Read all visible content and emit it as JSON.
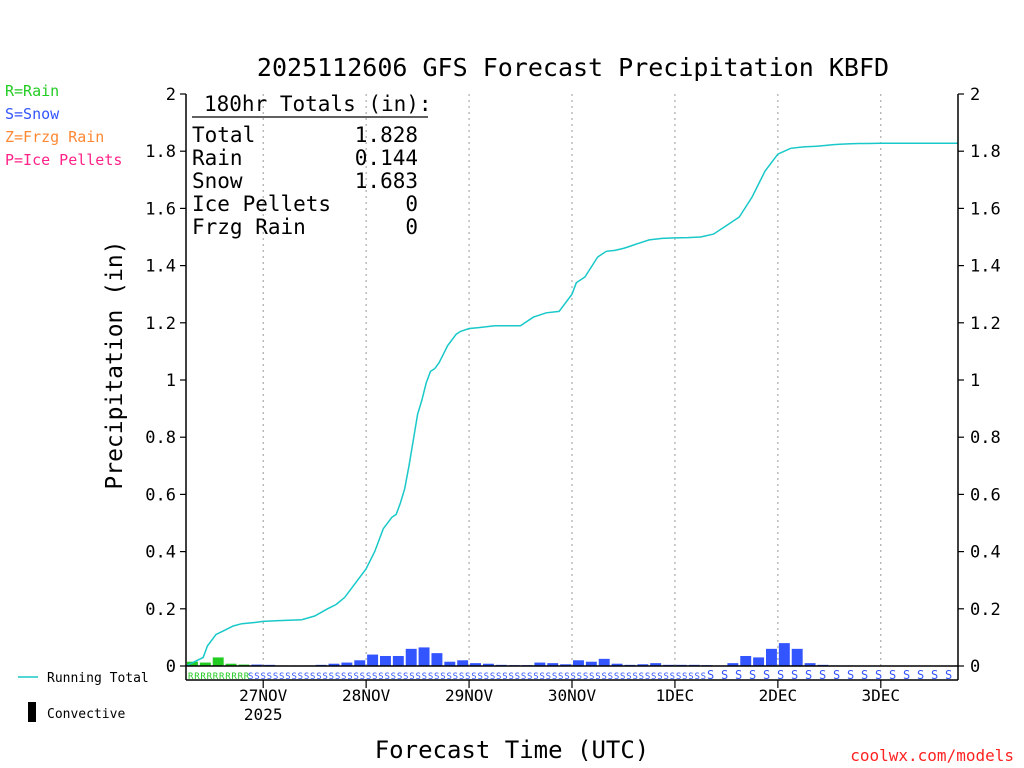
{
  "chart_data": {
    "type": "bar",
    "title": "2025112606 GFS Forecast Precipitation KBFD",
    "xlabel": "Forecast Time (UTC)",
    "ylabel": "Precipitation (in)",
    "ylim": [
      0,
      2
    ],
    "xlim_hours": [
      0,
      180
    ],
    "y_ticks": [
      {
        "v": 0,
        "label": "0"
      },
      {
        "v": 0.2,
        "label": "0.2"
      },
      {
        "v": 0.4,
        "label": "0.4"
      },
      {
        "v": 0.6,
        "label": "0.6"
      },
      {
        "v": 0.8,
        "label": "0.8"
      },
      {
        "v": 1.0,
        "label": "1"
      },
      {
        "v": 1.2,
        "label": "1.2"
      },
      {
        "v": 1.4,
        "label": "1.4"
      },
      {
        "v": 1.6,
        "label": "1.6"
      },
      {
        "v": 1.8,
        "label": "1.8"
      },
      {
        "v": 2.0,
        "label": "2"
      }
    ],
    "x_ticks": [
      {
        "h": 18,
        "label": "27NOV",
        "sublabel": "2025"
      },
      {
        "h": 42,
        "label": "28NOV",
        "sublabel": ""
      },
      {
        "h": 66,
        "label": "29NOV",
        "sublabel": ""
      },
      {
        "h": 90,
        "label": "30NOV",
        "sublabel": ""
      },
      {
        "h": 114,
        "label": "1DEC",
        "sublabel": ""
      },
      {
        "h": 138,
        "label": "2DEC",
        "sublabel": ""
      },
      {
        "h": 162,
        "label": "3DEC",
        "sublabel": ""
      }
    ],
    "precip_type_legend": [
      {
        "text": "R=Rain",
        "color": "#22cc22"
      },
      {
        "text": "S=Snow",
        "color": "#3355ff"
      },
      {
        "text": "Z=Frzg Rain",
        "color": "#ff8833"
      },
      {
        "text": "P=Ice Pellets",
        "color": "#ff2288"
      }
    ],
    "series_legend": [
      {
        "name": "Running Total",
        "kind": "line",
        "color": "#19c8c8"
      },
      {
        "name": "Convective",
        "kind": "bar",
        "color": "#000000"
      }
    ],
    "totals_box": {
      "header": "180hr Totals (in):",
      "rows": [
        {
          "label": "Total",
          "value": "1.828"
        },
        {
          "label": "Rain",
          "value": "0.144"
        },
        {
          "label": "Snow",
          "value": "1.683"
        },
        {
          "label": "Ice Pellets",
          "value": "0"
        },
        {
          "label": "Frzg Rain",
          "value": "0"
        }
      ]
    },
    "running_total": {
      "name": "Running Total",
      "color": "#19c8c8",
      "x_hours": [
        0,
        2,
        4,
        5,
        7,
        9,
        11,
        13,
        16,
        18,
        21,
        24,
        27,
        30,
        33,
        35,
        37,
        39,
        40,
        42,
        44,
        46,
        48,
        49,
        50,
        51,
        52,
        53,
        54,
        55,
        56,
        57,
        58,
        59,
        60,
        61,
        62,
        63,
        64,
        66,
        68,
        70,
        72,
        75,
        78,
        81,
        84,
        87,
        90,
        91,
        93,
        96,
        98,
        100,
        102,
        103,
        105,
        106,
        108,
        111,
        114,
        117,
        120,
        123,
        126,
        129,
        132,
        135,
        138,
        141,
        144,
        147,
        149,
        151,
        153,
        155,
        157,
        159,
        162,
        165,
        168,
        171,
        174,
        177,
        180
      ],
      "values": [
        0.0,
        0.015,
        0.03,
        0.07,
        0.11,
        0.125,
        0.14,
        0.148,
        0.152,
        0.156,
        0.158,
        0.16,
        0.162,
        0.175,
        0.2,
        0.215,
        0.24,
        0.28,
        0.3,
        0.34,
        0.4,
        0.48,
        0.52,
        0.53,
        0.57,
        0.62,
        0.7,
        0.79,
        0.88,
        0.93,
        0.99,
        1.03,
        1.04,
        1.06,
        1.09,
        1.12,
        1.14,
        1.16,
        1.17,
        1.18,
        1.183,
        1.186,
        1.19,
        1.19,
        1.19,
        1.22,
        1.235,
        1.24,
        1.3,
        1.34,
        1.36,
        1.43,
        1.45,
        1.453,
        1.46,
        1.465,
        1.475,
        1.48,
        1.49,
        1.495,
        1.497,
        1.498,
        1.5,
        1.51,
        1.54,
        1.57,
        1.64,
        1.73,
        1.79,
        1.81,
        1.815,
        1.817,
        1.82,
        1.823,
        1.825,
        1.826,
        1.827,
        1.827,
        1.828,
        1.828,
        1.828,
        1.828,
        1.828,
        1.828,
        1.828
      ]
    },
    "bars_3h": {
      "x_hours": [
        0,
        3,
        6,
        9,
        12,
        15,
        18,
        21,
        24,
        27,
        30,
        33,
        36,
        39,
        42,
        45,
        48,
        51,
        54,
        57,
        60,
        63,
        66,
        69,
        72,
        75,
        78,
        81,
        84,
        87,
        90,
        93,
        96,
        99,
        102,
        105,
        108,
        111,
        114,
        117,
        120,
        123,
        126,
        129,
        132,
        135,
        138,
        141,
        144,
        147,
        150,
        153,
        156,
        159,
        162,
        165,
        168,
        171,
        174,
        177
      ],
      "total": [
        0.015,
        0.012,
        0.03,
        0.008,
        0.005,
        0.005,
        0.004,
        0.002,
        0.002,
        0.002,
        0.004,
        0.008,
        0.012,
        0.02,
        0.04,
        0.035,
        0.035,
        0.06,
        0.065,
        0.045,
        0.015,
        0.02,
        0.01,
        0.008,
        0.004,
        0.003,
        0.003,
        0.012,
        0.01,
        0.006,
        0.02,
        0.015,
        0.025,
        0.008,
        0.004,
        0.006,
        0.01,
        0.004,
        0.004,
        0.004,
        0.003,
        0.002,
        0.01,
        0.035,
        0.03,
        0.06,
        0.08,
        0.06,
        0.01,
        0.004,
        0.002,
        0.002,
        0.001,
        0.001,
        0.001,
        0.001,
        0.001,
        0.001,
        0.001,
        0.001
      ],
      "colors": [
        "#22cc22",
        "#22cc22",
        "#22cc22",
        "#22cc22",
        "#22cc22",
        "#3355ff",
        "#3355ff",
        "#3355ff",
        "#3355ff",
        "#3355ff",
        "#3355ff",
        "#3355ff",
        "#3355ff",
        "#3355ff",
        "#3355ff",
        "#3355ff",
        "#3355ff",
        "#3355ff",
        "#3355ff",
        "#3355ff",
        "#3355ff",
        "#3355ff",
        "#3355ff",
        "#3355ff",
        "#3355ff",
        "#3355ff",
        "#3355ff",
        "#3355ff",
        "#3355ff",
        "#3355ff",
        "#3355ff",
        "#3355ff",
        "#3355ff",
        "#3355ff",
        "#3355ff",
        "#3355ff",
        "#3355ff",
        "#3355ff",
        "#3355ff",
        "#3355ff",
        "#3355ff",
        "#3355ff",
        "#3355ff",
        "#3355ff",
        "#3355ff",
        "#3355ff",
        "#3355ff",
        "#3355ff",
        "#3355ff",
        "#3355ff",
        "#3355ff",
        "#3355ff",
        "#3355ff",
        "#3355ff",
        "#3355ff",
        "#3355ff",
        "#3355ff",
        "#3355ff",
        "#3355ff",
        "#3355ff"
      ]
    },
    "type_strip": {
      "note": "precip type letters per time step along the zero line",
      "segments": [
        {
          "from_h": 0,
          "to_h": 14,
          "letter": "R",
          "color": "#22cc22"
        },
        {
          "from_h": 14,
          "to_h": 121,
          "letter": "S",
          "color": "#3355ff"
        },
        {
          "from_h": 121,
          "to_h": 180,
          "letter": "S",
          "color": "#3355ff"
        }
      ]
    },
    "watermark": "coolwx.com/models",
    "colors": {
      "axis": "#000000",
      "grid": "#999999",
      "line": "#19c8c8",
      "rain": "#22cc22",
      "snow": "#3355ff",
      "watermark": "#ff2222"
    }
  }
}
